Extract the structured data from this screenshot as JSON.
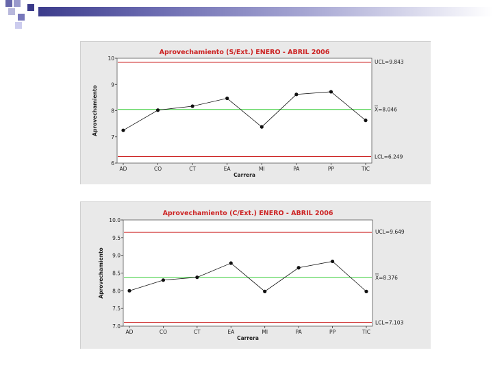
{
  "colors": {
    "title": "#cc2222",
    "limit_line": "#cc2222",
    "center_line": "#33cc33",
    "data_line": "#111111",
    "panel_bg": "#e9e9e9",
    "plot_bg": "#ffffff"
  },
  "chart_data": [
    {
      "type": "line",
      "title": "Aprovechamiento (S/Ext.) ENERO - ABRIL 2006",
      "xlabel": "Carrera",
      "ylabel": "Aprovechamiento",
      "categories": [
        "AD",
        "CO",
        "CT",
        "EA",
        "MI",
        "PA",
        "PP",
        "TIC"
      ],
      "values": [
        7.25,
        8.02,
        8.17,
        8.47,
        7.38,
        8.62,
        8.72,
        7.63
      ],
      "ylim": [
        6,
        10
      ],
      "yticks": [
        "6",
        "7",
        "8",
        "9",
        "10"
      ],
      "grid": false,
      "control_limits": {
        "ucl": 9.843,
        "ucl_label": "UCL=9.843",
        "center": 8.046,
        "center_label": "X=8.046",
        "lcl": 6.249,
        "lcl_label": "LCL=6.249"
      }
    },
    {
      "type": "line",
      "title": "Aprovechamiento (C/Ext.) ENERO - ABRIL 2006",
      "xlabel": "Carrera",
      "ylabel": "Aprovechamiento",
      "categories": [
        "AD",
        "CO",
        "CT",
        "EA",
        "MI",
        "PA",
        "PP",
        "TIC"
      ],
      "values": [
        8.0,
        8.3,
        8.38,
        8.78,
        7.98,
        8.65,
        8.83,
        7.98
      ],
      "ylim": [
        7.0,
        10.0
      ],
      "yticks": [
        "7.0",
        "7.5",
        "8.0",
        "8.5",
        "9.0",
        "9.5",
        "10.0"
      ],
      "grid": false,
      "control_limits": {
        "ucl": 9.649,
        "ucl_label": "UCL=9.649",
        "center": 8.376,
        "center_label": "X=8.376",
        "lcl": 7.103,
        "lcl_label": "LCL=7.103"
      }
    }
  ]
}
